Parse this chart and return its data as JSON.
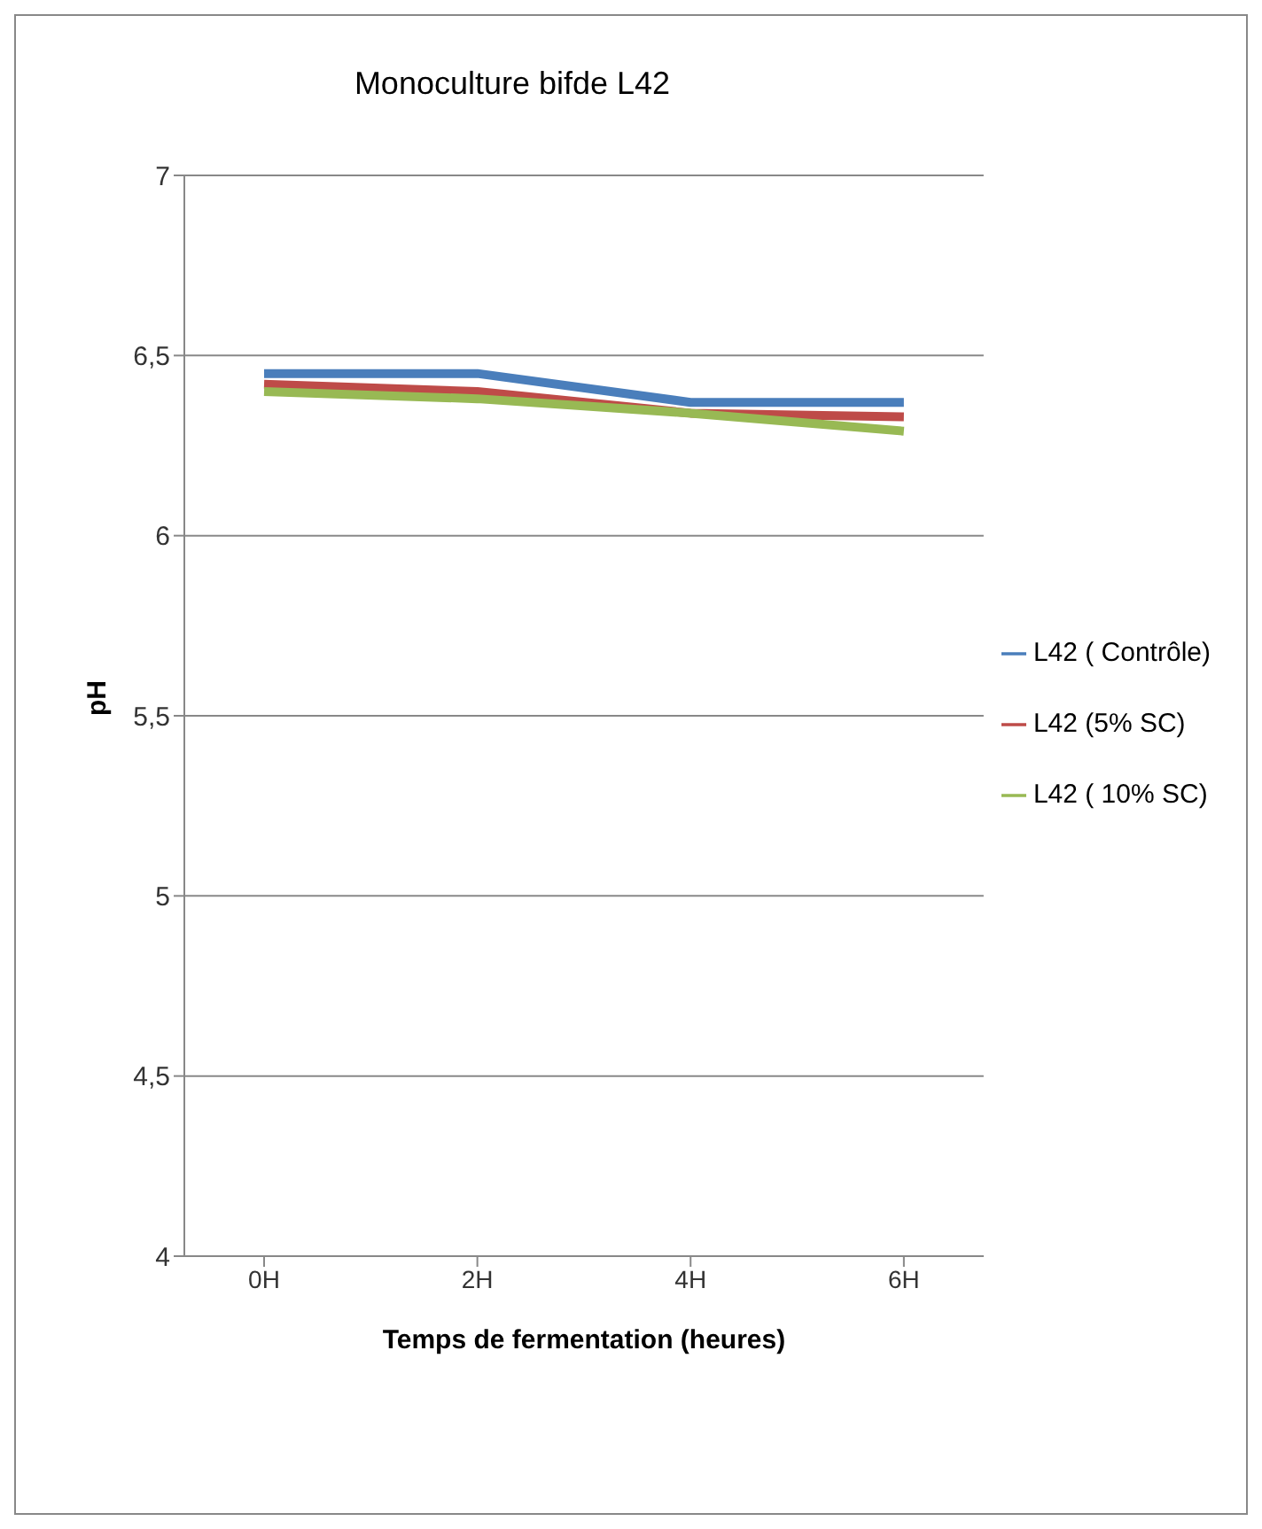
{
  "chart_data": {
    "type": "line",
    "title": "Monoculture bifde L42",
    "xlabel": "Temps de fermentation (heures)",
    "ylabel": "pH",
    "categories": [
      "0H",
      "2H",
      "4H",
      "6H"
    ],
    "series": [
      {
        "name": "L42 ( Contrôle)",
        "color": "#4a7ebb",
        "values": [
          6.45,
          6.45,
          6.37,
          6.37
        ]
      },
      {
        "name": "L42 (5% SC)",
        "color": "#be4b48",
        "values": [
          6.42,
          6.4,
          6.34,
          6.33
        ]
      },
      {
        "name": "L42 ( 10% SC)",
        "color": "#98b954",
        "values": [
          6.4,
          6.38,
          6.34,
          6.29
        ]
      }
    ],
    "ylim": [
      4,
      7
    ],
    "yticks": [
      {
        "value": 4,
        "label": "4"
      },
      {
        "value": 4.5,
        "label": "4,5"
      },
      {
        "value": 5,
        "label": "5"
      },
      {
        "value": 5.5,
        "label": "5,5"
      },
      {
        "value": 6,
        "label": "6"
      },
      {
        "value": 6.5,
        "label": "6,5"
      },
      {
        "value": 7,
        "label": "7"
      }
    ],
    "grid": "y",
    "legend": "right",
    "marker": "none",
    "line_style": "solid"
  }
}
